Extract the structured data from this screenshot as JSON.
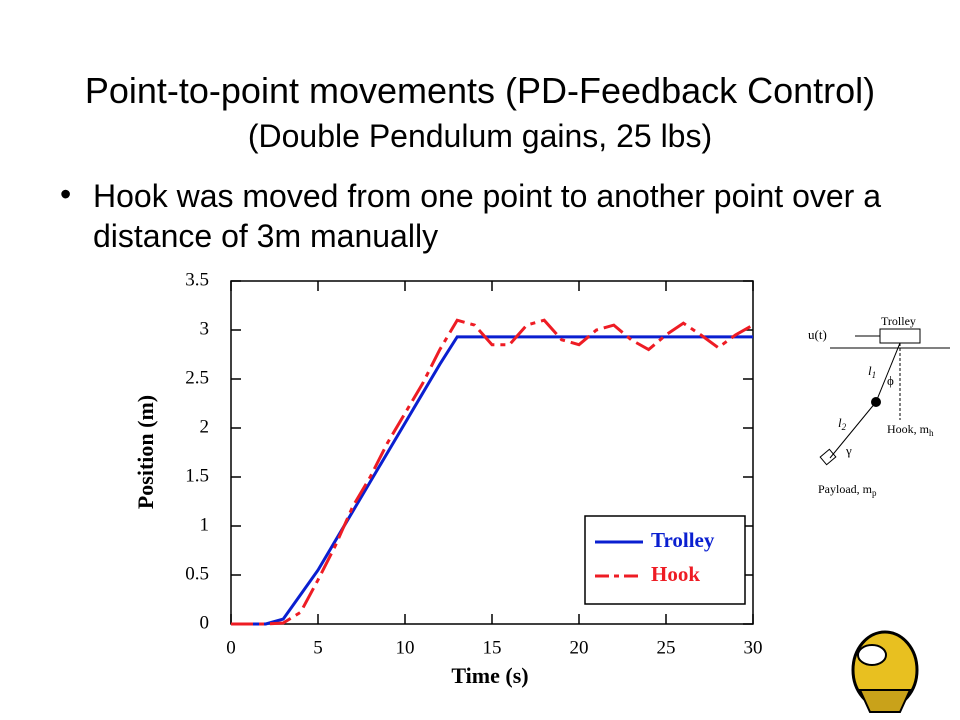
{
  "slide": {
    "title": "Point-to-point movements (PD-Feedback Control)",
    "subtitle": "(Double Pendulum gains, 25 lbs)",
    "bullets": [
      "Hook was moved from one point to another point over a distance of 3m manually"
    ]
  },
  "chart_data": {
    "type": "line",
    "xlabel": "Time (s)",
    "ylabel": "Position (m)",
    "x": [
      0,
      1,
      2,
      3,
      4,
      5,
      6,
      7,
      8,
      9,
      10,
      11,
      12,
      13,
      14,
      15,
      16,
      17,
      18,
      19,
      20,
      21,
      22,
      23,
      24,
      25,
      26,
      27,
      28,
      29,
      30
    ],
    "series": [
      {
        "name": "Trolley",
        "color": "#0a1fd0",
        "dash": false,
        "values": [
          0,
          0,
          0,
          0.05,
          0.3,
          0.55,
          0.85,
          1.15,
          1.45,
          1.75,
          2.05,
          2.35,
          2.65,
          2.93,
          2.93,
          2.93,
          2.93,
          2.93,
          2.93,
          2.93,
          2.93,
          2.93,
          2.93,
          2.93,
          2.93,
          2.93,
          2.93,
          2.93,
          2.93,
          2.93,
          2.93
        ]
      },
      {
        "name": "Hook",
        "color": "#ee1c24",
        "dash": true,
        "values": [
          0,
          0,
          0,
          0.01,
          0.12,
          0.45,
          0.8,
          1.2,
          1.5,
          1.85,
          2.15,
          2.45,
          2.8,
          3.1,
          3.05,
          2.85,
          2.85,
          3.05,
          3.1,
          2.9,
          2.85,
          3.0,
          3.05,
          2.9,
          2.8,
          2.95,
          3.07,
          2.95,
          2.82,
          2.95,
          3.05
        ]
      }
    ],
    "xlim": [
      0,
      30
    ],
    "ylim": [
      0,
      3.5
    ],
    "xticks": [
      0,
      5,
      10,
      15,
      20,
      25,
      30
    ],
    "yticks": [
      0,
      0.5,
      1,
      1.5,
      2,
      2.5,
      3,
      3.5
    ],
    "legend": "lower right"
  },
  "diagram": {
    "input": "u(t)",
    "trolley": "Trolley",
    "l1": "l",
    "l1_sub": "1",
    "phi": "ϕ",
    "l2": "l",
    "l2_sub": "2",
    "gamma": "γ",
    "hook": "Hook, m",
    "hook_sub": "h",
    "payload": "Payload, m",
    "payload_sub": "p"
  }
}
